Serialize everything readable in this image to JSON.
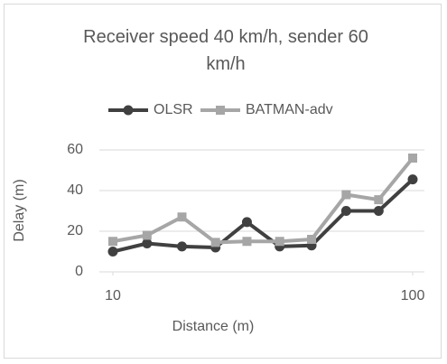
{
  "chart_data": {
    "type": "line",
    "title": "Receiver speed 40 km/h, sender 60 km/h",
    "x_label": "Distance (m)",
    "y_label": "Delay (m)",
    "x": [
      10,
      13,
      17,
      22,
      28,
      36,
      46,
      60,
      77,
      100
    ],
    "series": [
      {
        "name": "OLSR",
        "color": "#404040",
        "marker": "circle",
        "values": [
          10,
          14,
          12.5,
          12,
          24.5,
          12.5,
          13,
          30,
          30,
          45.5
        ]
      },
      {
        "name": "BATMAN-adv",
        "color": "#a6a6a6",
        "marker": "square",
        "values": [
          15,
          18,
          27,
          14.5,
          15,
          15,
          16,
          38,
          35.5,
          56
        ]
      }
    ],
    "xscale": "log",
    "xlim": [
      10,
      100
    ],
    "xticks": [
      10,
      100
    ],
    "ylim": [
      0,
      60
    ],
    "yticks": [
      0,
      20,
      40,
      60
    ],
    "grid": true,
    "legend": "top"
  }
}
